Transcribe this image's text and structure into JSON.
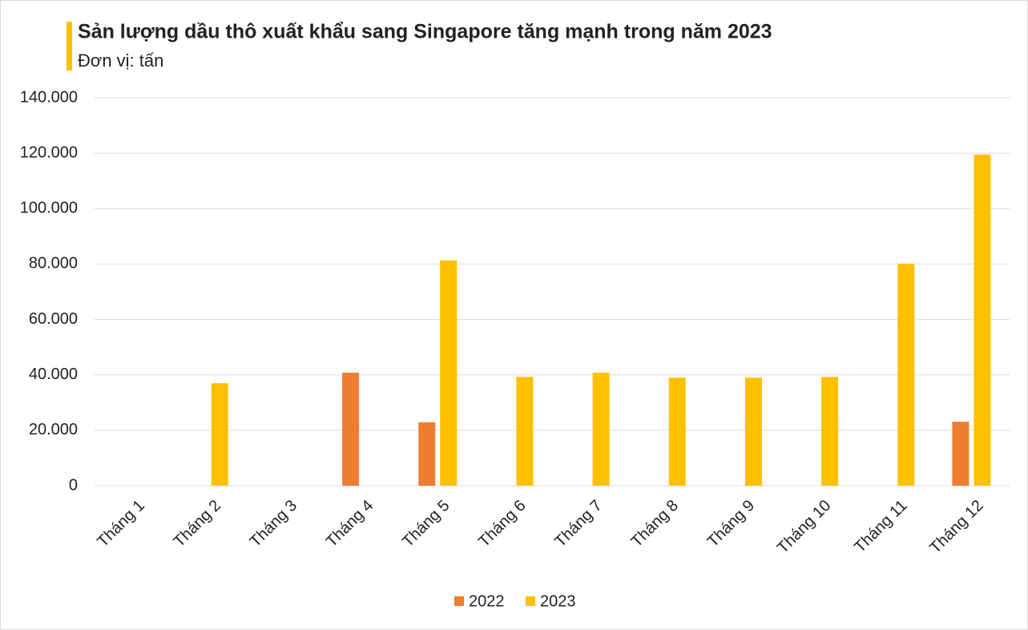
{
  "chart_data": {
    "type": "bar",
    "title": "Sản lượng dầu thô xuất khẩu sang Singapore tăng mạnh trong năm 2023",
    "subtitle": "Đơn vị: tấn",
    "categories": [
      "Tháng 1",
      "Tháng 2",
      "Tháng 3",
      "Tháng 4",
      "Tháng 5",
      "Tháng 6",
      "Tháng 7",
      "Tháng 8",
      "Tháng 9",
      "Tháng 10",
      "Tháng 11",
      "Tháng 12"
    ],
    "series": [
      {
        "name": "2022",
        "color": "#ed7d31",
        "values": [
          null,
          null,
          null,
          40800,
          22900,
          null,
          null,
          null,
          null,
          null,
          null,
          23100
        ]
      },
      {
        "name": "2023",
        "color": "#ffc000",
        "values": [
          null,
          37000,
          null,
          null,
          81300,
          39300,
          40800,
          39000,
          39000,
          39300,
          80100,
          119500
        ]
      }
    ],
    "ylim": [
      0,
      140000
    ],
    "yticks": [
      0,
      {
        "value": 20000,
        "label": "20.000"
      },
      {
        "value": 40000,
        "label": "40.000"
      },
      {
        "value": 60000,
        "label": "60.000"
      },
      {
        "value": 80000,
        "label": "80.000"
      },
      {
        "value": 100000,
        "label": "100.000"
      },
      {
        "value": 120000,
        "label": "120.000"
      },
      {
        "value": 140000,
        "label": "140.000"
      }
    ],
    "grid": true,
    "legend": "bottom"
  }
}
